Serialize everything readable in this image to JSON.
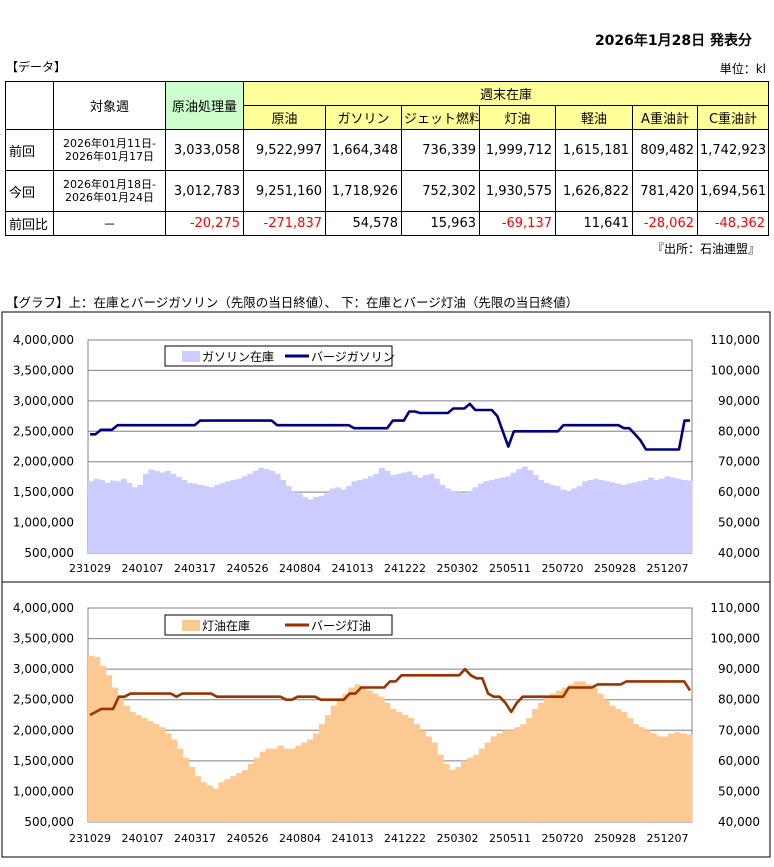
{
  "header": {
    "publication_date": "2026年1月28日 発表分",
    "data_label": "【データ】",
    "unit_label": "単位：kl",
    "source": "『出所：石油連盟』"
  },
  "table": {
    "col_target_week": "対象週",
    "col_refinery": "原油処理量",
    "group_weekly_stock": "週末在庫",
    "stock_columns": [
      "原油",
      "ガソリン",
      "ジェット燃料",
      "灯油",
      "軽油",
      "A重油計",
      "C重油計"
    ],
    "rows": [
      {
        "label": "前回",
        "period_line1": "2026年01月11日-",
        "period_line2": "2026年01月17日",
        "refinery": "3,033,058",
        "values": [
          "9,522,997",
          "1,664,348",
          "736,339",
          "1,999,712",
          "1,615,181",
          "809,482",
          "1,742,923"
        ]
      },
      {
        "label": "今回",
        "period_line1": "2026年01月18日-",
        "period_line2": "2026年01月24日",
        "refinery": "3,012,783",
        "values": [
          "9,251,160",
          "1,718,926",
          "752,302",
          "1,930,575",
          "1,626,822",
          "781,420",
          "1,694,561"
        ]
      }
    ],
    "diff_row": {
      "label": "前回比",
      "period": "－",
      "refinery": "-20,275",
      "values": [
        "-271,837",
        "54,578",
        "15,963",
        "-69,137",
        "11,641",
        "-28,062",
        "-48,362"
      ]
    }
  },
  "graph_title": "【グラフ】上：在庫とバージガソリン（先限の当日終値）、 下：在庫とバージ灯油（先限の当日終値）",
  "colors": {
    "gasoline_stock": "#ccccff",
    "gasoline_barge": "#000080",
    "kerosene_stock": "#fcc993",
    "kerosene_barge": "#993300",
    "table_header_yellow": "#ffff99",
    "table_refinery_green": "#ccffcc",
    "negative": "#ff0000"
  },
  "chart_data": [
    {
      "type": "bar+line",
      "title": "",
      "y_left_ticks": [
        "4,000,000",
        "3,500,000",
        "3,000,000",
        "2,500,000",
        "2,000,000",
        "1,500,000",
        "1,000,000",
        "500,000"
      ],
      "y_right_ticks": [
        "110,000",
        "100,000",
        "90,000",
        "80,000",
        "70,000",
        "60,000",
        "50,000",
        "40,000"
      ],
      "ylim_left": [
        500000,
        4000000
      ],
      "ylim_right": [
        40000,
        110000
      ],
      "x_ticks": [
        "231029",
        "240107",
        "240317",
        "240526",
        "240804",
        "241013",
        "241222",
        "250302",
        "250511",
        "250720",
        "250928",
        "251207"
      ],
      "legend_position": "top-left",
      "series": [
        {
          "name": "ガソリン在庫",
          "kind": "bar",
          "axis": "left",
          "values": [
            1680000,
            1720000,
            1700000,
            1650000,
            1690000,
            1680000,
            1720000,
            1650000,
            1580000,
            1620000,
            1800000,
            1870000,
            1850000,
            1820000,
            1850000,
            1800000,
            1750000,
            1700000,
            1650000,
            1640000,
            1620000,
            1600000,
            1580000,
            1620000,
            1650000,
            1680000,
            1700000,
            1720000,
            1760000,
            1800000,
            1850000,
            1900000,
            1880000,
            1850000,
            1800000,
            1700000,
            1600000,
            1500000,
            1480000,
            1420000,
            1380000,
            1420000,
            1440000,
            1480000,
            1560000,
            1580000,
            1540000,
            1600000,
            1680000,
            1700000,
            1720000,
            1760000,
            1800000,
            1900000,
            1850000,
            1780000,
            1800000,
            1820000,
            1840000,
            1780000,
            1740000,
            1780000,
            1800000,
            1720000,
            1620000,
            1560000,
            1520000,
            1500000,
            1480000,
            1520000,
            1580000,
            1640000,
            1680000,
            1700000,
            1720000,
            1740000,
            1760000,
            1820000,
            1880000,
            1920000,
            1860000,
            1780000,
            1700000,
            1650000,
            1620000,
            1600000,
            1540000,
            1520000,
            1560000,
            1600000,
            1680000,
            1700000,
            1720000,
            1700000,
            1680000,
            1660000,
            1640000,
            1620000,
            1640000,
            1660000,
            1680000,
            1700000,
            1740000,
            1700000,
            1720000,
            1760000,
            1740000,
            1720000,
            1700000,
            1690000
          ]
        },
        {
          "name": "バージガソリン",
          "kind": "line",
          "axis": "right",
          "values": [
            79000,
            79000,
            80500,
            80500,
            80500,
            82000,
            82000,
            82000,
            82000,
            82000,
            82000,
            82000,
            82000,
            82000,
            82000,
            82000,
            82000,
            82000,
            82000,
            82000,
            83500,
            83500,
            83500,
            83500,
            83500,
            83500,
            83500,
            83500,
            83500,
            83500,
            83500,
            83500,
            83500,
            83500,
            82000,
            82000,
            82000,
            82000,
            82000,
            82000,
            82000,
            82000,
            82000,
            82000,
            82000,
            82000,
            82000,
            82000,
            81000,
            81000,
            81000,
            81000,
            81000,
            81000,
            81000,
            83500,
            83500,
            83500,
            86500,
            86500,
            86000,
            86000,
            86000,
            86000,
            86000,
            86000,
            87500,
            87500,
            87500,
            89000,
            87000,
            87000,
            87000,
            87000,
            85000,
            80000,
            75000,
            80000,
            80000,
            80000,
            80000,
            80000,
            80000,
            80000,
            80000,
            80000,
            82000,
            82000,
            82000,
            82000,
            82000,
            82000,
            82000,
            82000,
            82000,
            82000,
            82000,
            81000,
            81000,
            79000,
            77000,
            74000,
            74000,
            74000,
            74000,
            74000,
            74000,
            74000,
            83500,
            83500
          ]
        }
      ]
    },
    {
      "type": "bar+line",
      "title": "",
      "y_left_ticks": [
        "4,000,000",
        "3,500,000",
        "3,000,000",
        "2,500,000",
        "2,000,000",
        "1,500,000",
        "1,000,000",
        "500,000"
      ],
      "y_right_ticks": [
        "110,000",
        "100,000",
        "90,000",
        "80,000",
        "70,000",
        "60,000",
        "50,000",
        "40,000"
      ],
      "ylim_left": [
        500000,
        4000000
      ],
      "ylim_right": [
        40000,
        110000
      ],
      "x_ticks": [
        "231029",
        "240107",
        "240317",
        "240526",
        "240804",
        "241013",
        "241222",
        "250302",
        "250511",
        "250720",
        "250928",
        "251207"
      ],
      "legend_position": "top-left",
      "series": [
        {
          "name": "灯油在庫",
          "kind": "bar",
          "axis": "left",
          "values": [
            3220000,
            3200000,
            3050000,
            2900000,
            2700000,
            2550000,
            2400000,
            2300000,
            2250000,
            2200000,
            2150000,
            2100000,
            2050000,
            1950000,
            1850000,
            1700000,
            1550000,
            1400000,
            1250000,
            1150000,
            1100000,
            1050000,
            1150000,
            1200000,
            1250000,
            1300000,
            1350000,
            1450000,
            1550000,
            1650000,
            1700000,
            1700000,
            1750000,
            1700000,
            1700000,
            1750000,
            1800000,
            1850000,
            1950000,
            2100000,
            2250000,
            2400000,
            2500000,
            2600000,
            2700000,
            2750000,
            2720000,
            2650000,
            2600000,
            2550000,
            2450000,
            2350000,
            2300000,
            2250000,
            2200000,
            2100000,
            2000000,
            1900000,
            1800000,
            1600000,
            1450000,
            1350000,
            1400000,
            1500000,
            1550000,
            1600000,
            1700000,
            1800000,
            1900000,
            1950000,
            2000000,
            2000000,
            2050000,
            2100000,
            2200000,
            2350000,
            2450000,
            2550000,
            2600000,
            2650000,
            2700000,
            2750000,
            2800000,
            2800000,
            2750000,
            2700000,
            2600000,
            2500000,
            2400000,
            2350000,
            2300000,
            2200000,
            2100000,
            2050000,
            2000000,
            1950000,
            1900000,
            1900000,
            1950000,
            1970000,
            1950000,
            1930000
          ]
        },
        {
          "name": "バージ灯油",
          "kind": "line",
          "axis": "right",
          "values": [
            75000,
            76000,
            77000,
            77000,
            77000,
            81000,
            81000,
            82000,
            82000,
            82000,
            82000,
            82000,
            82000,
            82000,
            82000,
            81000,
            82000,
            82000,
            82000,
            82000,
            82000,
            82000,
            81000,
            81000,
            81000,
            81000,
            81000,
            81000,
            81000,
            81000,
            81000,
            81000,
            81000,
            81000,
            80000,
            80000,
            81000,
            81000,
            81000,
            81000,
            80000,
            80000,
            80000,
            80000,
            80000,
            82000,
            82000,
            84000,
            84000,
            84000,
            84000,
            84000,
            86000,
            86000,
            88000,
            88000,
            88000,
            88000,
            88000,
            88000,
            88000,
            88000,
            88000,
            88000,
            88000,
            90000,
            88000,
            87000,
            87000,
            82000,
            81000,
            81000,
            79000,
            76000,
            79000,
            81000,
            81000,
            81000,
            81000,
            81000,
            81000,
            81000,
            81000,
            84000,
            84000,
            84000,
            84000,
            84000,
            85000,
            85000,
            85000,
            85000,
            85000,
            86000,
            86000,
            86000,
            86000,
            86000,
            86000,
            86000,
            86000,
            86000,
            86000,
            86000,
            83000
          ]
        }
      ]
    }
  ]
}
